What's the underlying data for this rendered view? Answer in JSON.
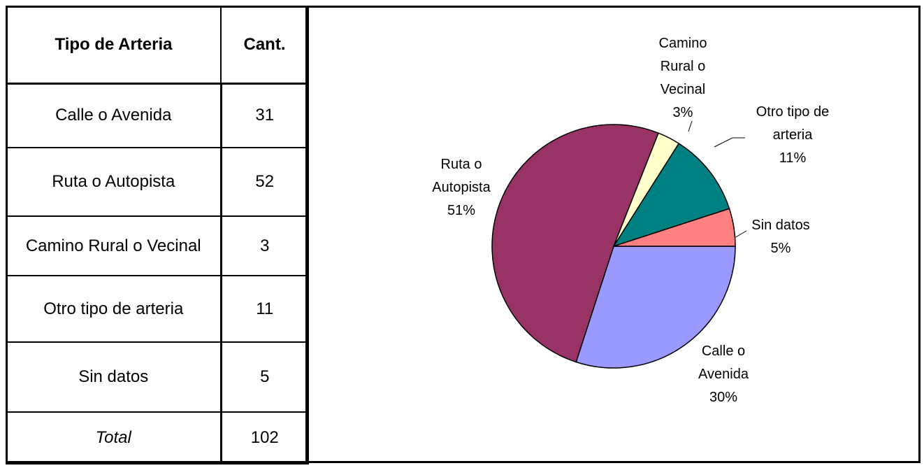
{
  "table": {
    "header": [
      "Tipo de Arteria",
      "Cant."
    ],
    "rows": [
      [
        "Calle o Avenida",
        31
      ],
      [
        "Ruta o Autopista",
        52
      ],
      [
        "Camino Rural o Vecinal",
        3
      ],
      [
        "Otro tipo de arteria",
        11
      ],
      [
        "Sin datos",
        5
      ]
    ],
    "total": [
      "Total",
      102
    ]
  },
  "chart_data": {
    "type": "pie",
    "categories": [
      "Calle o Avenida",
      "Ruta o Autopista",
      "Camino Rural o Vecinal",
      "Otro tipo de arteria",
      "Sin datos"
    ],
    "values": [
      30,
      51,
      3,
      11,
      5
    ],
    "value_labels": [
      "30%",
      "51%",
      "3%",
      "11%",
      "5%"
    ],
    "colors": [
      "#9999ff",
      "#993366",
      "#ffffcc",
      "#008080",
      "#ff8080"
    ]
  }
}
